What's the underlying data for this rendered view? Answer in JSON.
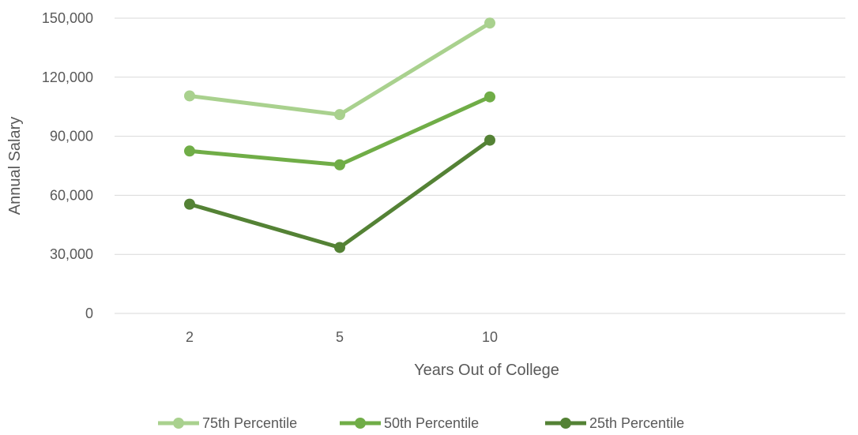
{
  "chart_data": {
    "type": "line",
    "title": "",
    "xlabel": "Years Out of College",
    "ylabel": "Annual Salary",
    "categories": [
      "2",
      "5",
      "10"
    ],
    "category_slots": 5,
    "ylim": [
      0,
      150000
    ],
    "yticks": [
      0,
      30000,
      60000,
      90000,
      120000,
      150000
    ],
    "ytick_labels": [
      "0",
      "30,000",
      "60,000",
      "90,000",
      "120,000",
      "150,000"
    ],
    "grid": true,
    "legend_position": "bottom",
    "series": [
      {
        "name": "75th Percentile",
        "color": "#A9D18E",
        "values": [
          110500,
          101000,
          147500
        ]
      },
      {
        "name": "50th Percentile",
        "color": "#70AD47",
        "values": [
          82500,
          75500,
          110000
        ]
      },
      {
        "name": "25th Percentile",
        "color": "#548235",
        "values": [
          55500,
          33500,
          88000
        ]
      }
    ]
  }
}
